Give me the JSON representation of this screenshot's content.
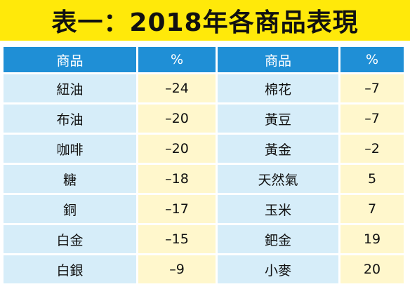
{
  "title": "表一：2018年各商品表現",
  "headers": [
    "商品",
    "%",
    "商品",
    "%"
  ],
  "rows": [
    {
      "left_name": "紐油",
      "left_pct": "–24",
      "right_name": "棉花",
      "right_pct": "–7"
    },
    {
      "left_name": "布油",
      "left_pct": "–20",
      "right_name": "黃豆",
      "right_pct": "–7"
    },
    {
      "left_name": "咖啡",
      "left_pct": "–20",
      "right_name": "黃金",
      "right_pct": "–2"
    },
    {
      "left_name": "糖",
      "left_pct": "–18",
      "right_name": "天然氣",
      "right_pct": "5"
    },
    {
      "left_name": "銅",
      "left_pct": "–17",
      "right_name": "玉米",
      "right_pct": "7"
    },
    {
      "left_name": "白金",
      "left_pct": "–15",
      "right_name": "鈀金",
      "right_pct": "19"
    },
    {
      "left_name": "白銀",
      "left_pct": "–9",
      "right_name": "小麥",
      "right_pct": "20"
    }
  ],
  "colors": {
    "title_bg": "#ffe90a",
    "header_bg": "#1f8fd6",
    "name_cell_bg": "#d6edf9",
    "pct_cell_bg": "#fff7cc"
  }
}
